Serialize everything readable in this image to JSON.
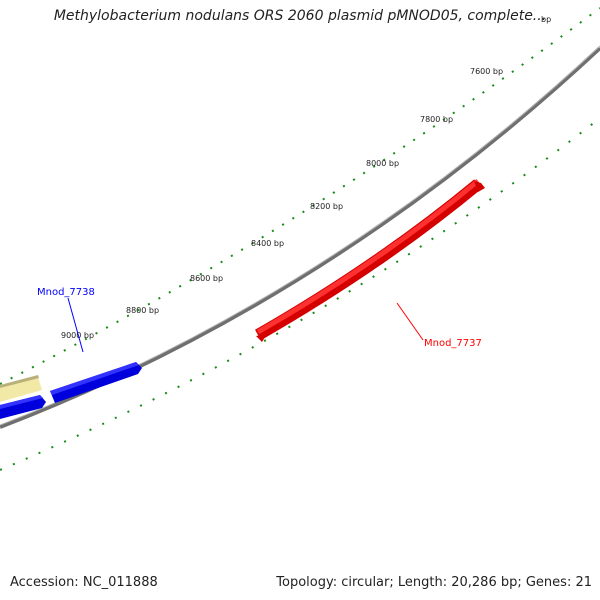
{
  "title": "Methylobacterium nodulans ORS 2060 plasmid pMNOD05, complete...",
  "footer": {
    "accession": "Accession: NC_011888",
    "summary": "Topology: circular; Length: 20,286 bp; Genes: 21"
  },
  "scale_labels": [
    "7600 bp",
    "7800 bp",
    "8000 bp",
    "8200 bp",
    "8400 bp",
    "8600 bp",
    "8800 bp",
    "9000 bp"
  ],
  "clipped_label": "bp",
  "genes": {
    "red": {
      "label": "Mnod_7737",
      "color": "#ff0000"
    },
    "blue": {
      "label": "Mnod_7738",
      "color": "#0000ff"
    }
  },
  "colors": {
    "backbone": "#808080",
    "ticks": "#1a8a1a",
    "tan_feature": "#f2e9a6"
  }
}
